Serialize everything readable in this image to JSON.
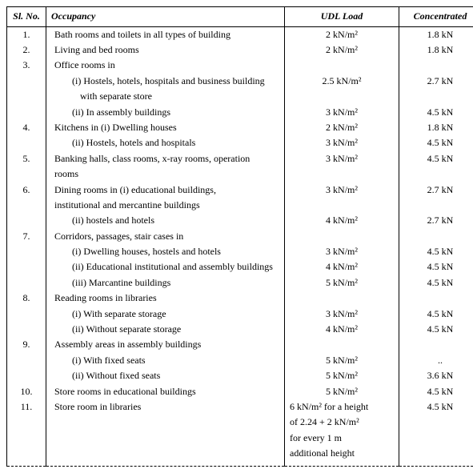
{
  "headers": {
    "sl": "Sl. No.",
    "occ": "Occupancy",
    "udl": "UDL Load",
    "con": "Concentrated"
  },
  "r1": {
    "sl": "1.",
    "occ": "Bath rooms and toilets in all types of building",
    "udl": "2 kN/m²",
    "con": "1.8 kN"
  },
  "r2": {
    "sl": "2.",
    "occ": "Living and bed rooms",
    "udl": "2 kN/m²",
    "con": "1.8 kN"
  },
  "r3": {
    "sl": "3.",
    "occ": "Office rooms in",
    "udl": "",
    "con": ""
  },
  "r3a": {
    "occ": "(i)  Hostels, hotels, hospitals and business building",
    "udl": "2.5 kN/m²",
    "con": "2.7 kN"
  },
  "r3a2": {
    "occ": "with separate store"
  },
  "r3b": {
    "occ": "(ii) In assembly buildings",
    "udl": "3 kN/m²",
    "con": "4.5 kN"
  },
  "r4": {
    "sl": "4.",
    "occ": "Kitchens in (i) Dwelling houses",
    "udl": "2 kN/m²",
    "con": "1.8 kN"
  },
  "r4b": {
    "occ": "(ii) Hostels, hotels and hospitals",
    "udl": "3 kN/m²",
    "con": "4.5 kN"
  },
  "r5": {
    "sl": "5.",
    "occ": "Banking halls, class rooms, x-ray rooms, operation",
    "udl": "3 kN/m²",
    "con": "4.5 kN"
  },
  "r5b": {
    "occ": "rooms"
  },
  "r6": {
    "sl": "6.",
    "occ": "Dining rooms in (i) educational buildings,",
    "udl": "3 kN/m²",
    "con": "2.7 kN"
  },
  "r6b": {
    "occ": "institutional and mercantine buildings"
  },
  "r6c": {
    "occ": "(ii) hostels and hotels",
    "udl": "4 kN/m²",
    "con": "2.7 kN"
  },
  "r7": {
    "sl": "7.",
    "occ": "Corridors, passages, stair cases in",
    "udl": "",
    "con": ""
  },
  "r7a": {
    "occ": "(i)  Dwelling houses, hostels and hotels",
    "udl": "3 kN/m²",
    "con": "4.5 kN"
  },
  "r7b": {
    "occ": "(ii) Educational institutional and assembly buildings",
    "udl": "4 kN/m²",
    "con": "4.5 kN"
  },
  "r7c": {
    "occ": "(iii) Marcantine buildings",
    "udl": "5 kN/m²",
    "con": "4.5 kN"
  },
  "r8": {
    "sl": "8.",
    "occ": "Reading rooms in libraries",
    "udl": "",
    "con": ""
  },
  "r8a": {
    "occ": "(i)  With separate storage",
    "udl": "3 kN/m²",
    "con": "4.5 kN"
  },
  "r8b": {
    "occ": "(ii) Without separate storage",
    "udl": "4 kN/m²",
    "con": "4.5 kN"
  },
  "r9": {
    "sl": "9.",
    "occ": "Assembly areas in assembly buildings",
    "udl": "",
    "con": ""
  },
  "r9a": {
    "occ": "(i)  With fixed seats",
    "udl": "5 kN/m²",
    "con": ".."
  },
  "r9b": {
    "occ": "(ii) Without fixed seats",
    "udl": "5 kN/m²",
    "con": "3.6 kN"
  },
  "r10": {
    "sl": "10.",
    "occ": "Store rooms in educational buildings",
    "udl": "5 kN/m²",
    "con": "4.5 kN"
  },
  "r11": {
    "sl": "11.",
    "occ": "Store room in libraries",
    "udl": "6 kN/m² for a height",
    "con": "4.5 kN"
  },
  "r11b": {
    "udl": "of 2.24 + 2 kN/m²"
  },
  "r11c": {
    "udl": "for every 1 m"
  },
  "r11d": {
    "udl": "additional height"
  }
}
